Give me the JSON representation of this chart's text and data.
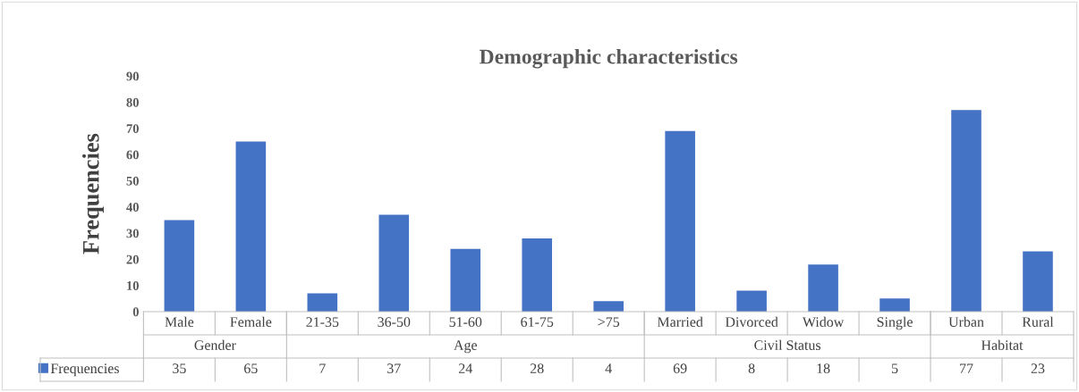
{
  "chart_data": {
    "type": "bar",
    "title": "Demographic characteristics",
    "ylabel": "Frequencies",
    "categories": [
      "Male",
      "Female",
      "21-35",
      "36-50",
      "51-60",
      "61-75",
      ">75",
      "Married",
      "Divorced",
      "Widow",
      "Single",
      "Urban",
      "Rural"
    ],
    "series": [
      {
        "name": "Frequencies",
        "color": "#4472c4",
        "values": [
          35,
          65,
          7,
          37,
          24,
          28,
          4,
          69,
          8,
          18,
          5,
          77,
          23
        ]
      }
    ],
    "annotations": [
      "Gender",
      "Age",
      "Civil Status",
      "Habitat"
    ],
    "ylim": [
      0,
      90
    ],
    "yticks": [
      0,
      10,
      20,
      30,
      40,
      50,
      60,
      70,
      80,
      90
    ],
    "data_labels": true,
    "legend": "bottom left",
    "grid": false
  }
}
